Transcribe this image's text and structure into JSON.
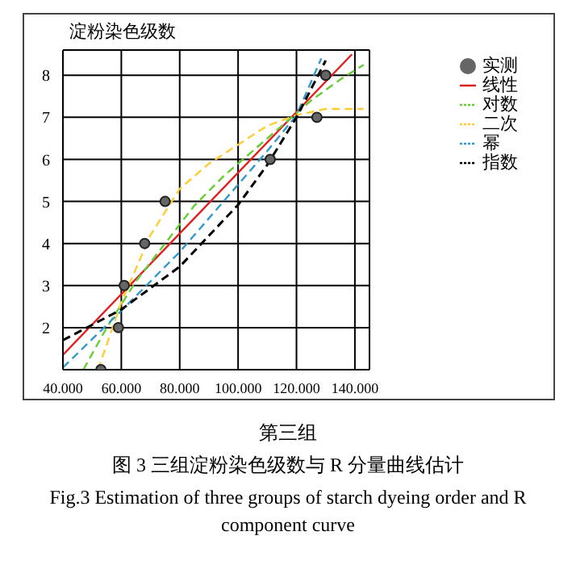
{
  "chart_data": {
    "type": "line",
    "xlabel": "第三组",
    "ylabel": "淀粉染色级数",
    "annotations": [
      "图 3 三组淀粉染色级数与 R 分量曲线估计",
      "Fig.3 Estimation of three groups of starch dyeing order and R component curve"
    ],
    "xlim": [
      40,
      145
    ],
    "xticks": [
      {
        "value": 40,
        "label": "40.000"
      },
      {
        "value": 60,
        "label": "60.000"
      },
      {
        "value": 80,
        "label": "80.000"
      },
      {
        "value": 100,
        "label": "100.000"
      },
      {
        "value": 120,
        "label": "120.000"
      },
      {
        "value": 140,
        "label": "140.000"
      }
    ],
    "ylim": [
      1,
      8.6
    ],
    "yticks": [
      2,
      3,
      4,
      5,
      6,
      7,
      8
    ],
    "grid": true,
    "legend": "top right",
    "series": [
      {
        "name": "实测",
        "type": "scatter",
        "marker": "circle",
        "color": "#666666",
        "x": [
          53,
          59,
          61,
          68,
          75,
          111,
          127,
          130
        ],
        "values": [
          1,
          2,
          3,
          4,
          5,
          6,
          7,
          8
        ]
      },
      {
        "name": "线性",
        "marker": "none",
        "line_style": "solid",
        "color": "#e02020",
        "x": [
          40,
          139
        ],
        "values": [
          1.35,
          8.5
        ]
      },
      {
        "name": "对数",
        "marker": "none",
        "line_style": "dashed",
        "color": "#66cc33",
        "x": [
          47,
          55,
          65,
          75,
          85,
          95,
          105,
          115,
          125,
          135,
          143
        ],
        "values": [
          1,
          2.0,
          3.1,
          4.0,
          4.9,
          5.6,
          6.2,
          6.8,
          7.4,
          7.9,
          8.25
        ]
      },
      {
        "name": "二次",
        "marker": "none",
        "line_style": "dashed",
        "color": "#ffcc33",
        "x": [
          52,
          60,
          70,
          80,
          90,
          100,
          110,
          120,
          130,
          143
        ],
        "values": [
          1,
          2.6,
          4.2,
          5.3,
          5.9,
          6.35,
          6.8,
          7.05,
          7.2,
          7.2
        ]
      },
      {
        "name": "幂",
        "marker": "none",
        "line_style": "dashed",
        "color": "#3399cc",
        "x": [
          40,
          60,
          80,
          100,
          110,
          120,
          128.5
        ],
        "values": [
          1.05,
          2.4,
          3.8,
          5.4,
          6.2,
          7.05,
          8.4
        ]
      },
      {
        "name": "指数",
        "marker": "none",
        "line_style": "dashed",
        "color": "#000000",
        "x": [
          40,
          60,
          80,
          100,
          110,
          120,
          130
        ],
        "values": [
          1.7,
          2.43,
          3.45,
          4.92,
          5.87,
          7.0,
          8.35
        ]
      }
    ]
  }
}
